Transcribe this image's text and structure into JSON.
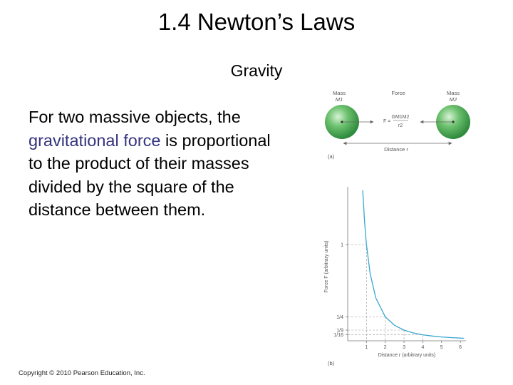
{
  "slide": {
    "title": "1.4 Newton’s Laws",
    "subtitle": "Gravity",
    "body": {
      "part1": "For two massive objects, the ",
      "highlight": "gravitational force",
      "part2": " is proportional to the product of their masses divided by the square of the distance between them."
    },
    "copyright": "Copyright © 2010 Pearson Education, Inc.",
    "accent_color": "#33337f"
  },
  "figure": {
    "panel_a": {
      "label": "(a)",
      "mass_left_label": "Mass",
      "mass_left_symbol": "M1",
      "force_label": "Force",
      "mass_right_label": "Mass",
      "mass_right_symbol": "M2",
      "formula_top": "GM1M2",
      "formula_lhs": "F =",
      "formula_bottom": "r2",
      "distance_label": "Distance r",
      "sphere_color": "#6cc16e"
    },
    "panel_b": {
      "label": "(b)"
    }
  },
  "chart_data": {
    "type": "line",
    "title": "",
    "xlabel": "Distance r (arbitrary units)",
    "ylabel": "Force F (arbitrary units)",
    "x_ticks": [
      "1",
      "2",
      "3",
      "4",
      "5",
      "6"
    ],
    "y_ticks": [
      "1",
      "1/4",
      "1/9",
      "1/16"
    ],
    "xlim": [
      0,
      6.3
    ],
    "ylim": [
      0,
      1.6
    ],
    "series": [
      {
        "x": [
          0.8,
          0.9,
          1,
          1.2,
          1.5,
          2,
          2.5,
          3,
          3.5,
          4,
          4.5,
          5,
          5.5,
          6,
          6.2
        ],
        "values": [
          1.5625,
          1.2346,
          1,
          0.6944,
          0.4444,
          0.25,
          0.16,
          0.1111,
          0.0816,
          0.0625,
          0.0494,
          0.04,
          0.0331,
          0.0278,
          0.026
        ]
      }
    ],
    "line_color": "#3aa6d0",
    "grid": false
  }
}
